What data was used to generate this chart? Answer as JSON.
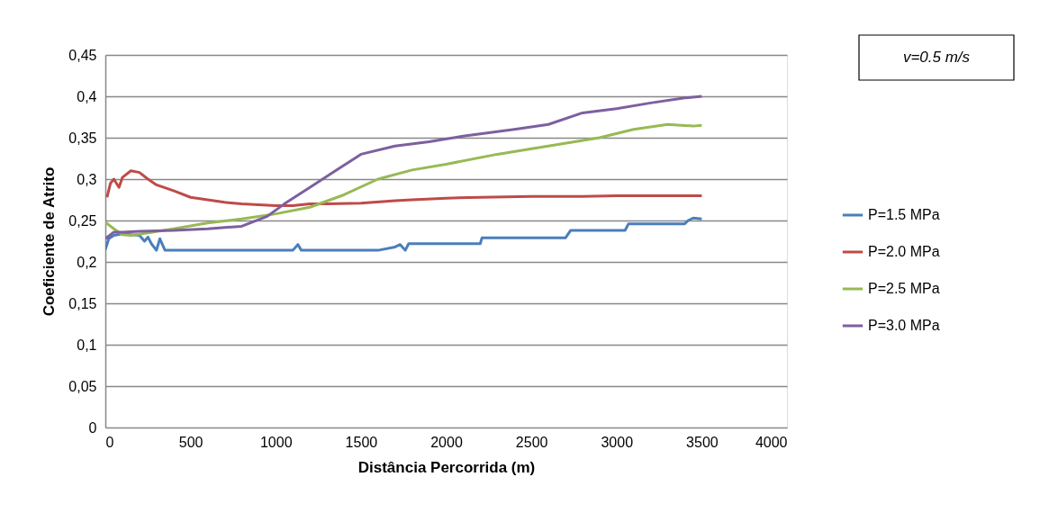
{
  "chart_data": {
    "type": "line",
    "xlabel": "Distância Percorrida (m)",
    "ylabel": "Coeficiente de Atrito",
    "annotations": [
      "v=0.5 m/s"
    ],
    "xlim": [
      0,
      4000
    ],
    "xticks": [
      0,
      500,
      1000,
      1500,
      2000,
      2500,
      3000,
      3500,
      4000
    ],
    "ylim": [
      0,
      0.45
    ],
    "yticks": [
      {
        "value": 0,
        "label": "0"
      },
      {
        "value": 0.05,
        "label": "0,05"
      },
      {
        "value": 0.1,
        "label": "0,1"
      },
      {
        "value": 0.15,
        "label": "0,15"
      },
      {
        "value": 0.2,
        "label": "0,2"
      },
      {
        "value": 0.25,
        "label": "0,25"
      },
      {
        "value": 0.3,
        "label": "0,3"
      },
      {
        "value": 0.35,
        "label": "0,35"
      },
      {
        "value": 0.4,
        "label": "0,4"
      },
      {
        "value": 0.45,
        "label": "0,45"
      }
    ],
    "grid": "y",
    "legend": "right",
    "marker": "none",
    "line_style": "solid",
    "series": [
      {
        "name": "P=1.5 MPa",
        "color": "#4a7ebb",
        "x": [
          0,
          20,
          50,
          100,
          150,
          200,
          230,
          250,
          270,
          300,
          320,
          350,
          600,
          1100,
          1130,
          1150,
          1600,
          1700,
          1730,
          1760,
          1780,
          2200,
          2210,
          2250,
          2700,
          2730,
          2760,
          3050,
          3070,
          3100,
          3400,
          3420,
          3450,
          3500
        ],
        "values": [
          0.215,
          0.228,
          0.232,
          0.234,
          0.233,
          0.232,
          0.225,
          0.23,
          0.222,
          0.214,
          0.228,
          0.214,
          0.214,
          0.214,
          0.221,
          0.214,
          0.214,
          0.218,
          0.221,
          0.214,
          0.222,
          0.222,
          0.229,
          0.229,
          0.229,
          0.238,
          0.238,
          0.238,
          0.246,
          0.246,
          0.246,
          0.25,
          0.253,
          0.252
        ]
      },
      {
        "name": "P=2.0 MPa",
        "color": "#be4b48",
        "x": [
          10,
          30,
          50,
          80,
          100,
          150,
          200,
          250,
          300,
          400,
          500,
          600,
          700,
          800,
          900,
          1000,
          1100,
          1200,
          1300,
          1500,
          1700,
          1800,
          2000,
          2200,
          2500,
          2800,
          3000,
          3200,
          3500
        ],
        "values": [
          0.278,
          0.295,
          0.3,
          0.29,
          0.302,
          0.31,
          0.308,
          0.3,
          0.293,
          0.286,
          0.278,
          0.275,
          0.272,
          0.27,
          0.269,
          0.268,
          0.268,
          0.27,
          0.27,
          0.271,
          0.274,
          0.275,
          0.277,
          0.278,
          0.279,
          0.279,
          0.28,
          0.28,
          0.28
        ]
      },
      {
        "name": "P=2.5 MPa",
        "color": "#98b954",
        "x": [
          0,
          50,
          100,
          150,
          250,
          400,
          600,
          800,
          1000,
          1200,
          1400,
          1600,
          1800,
          2000,
          2300,
          2600,
          2900,
          3100,
          3300,
          3450,
          3500
        ],
        "values": [
          0.248,
          0.24,
          0.233,
          0.232,
          0.235,
          0.24,
          0.247,
          0.252,
          0.258,
          0.266,
          0.281,
          0.3,
          0.311,
          0.318,
          0.33,
          0.34,
          0.35,
          0.36,
          0.366,
          0.364,
          0.365
        ]
      },
      {
        "name": "P=3.0 MPa",
        "color": "#7d5fa0",
        "x": [
          0,
          50,
          100,
          200,
          400,
          600,
          800,
          950,
          1050,
          1200,
          1350,
          1500,
          1700,
          1900,
          2100,
          2400,
          2600,
          2800,
          3000,
          3200,
          3400,
          3500
        ],
        "values": [
          0.228,
          0.236,
          0.236,
          0.237,
          0.238,
          0.24,
          0.243,
          0.255,
          0.27,
          0.29,
          0.31,
          0.33,
          0.34,
          0.345,
          0.352,
          0.36,
          0.366,
          0.38,
          0.385,
          0.392,
          0.398,
          0.4
        ]
      }
    ]
  }
}
